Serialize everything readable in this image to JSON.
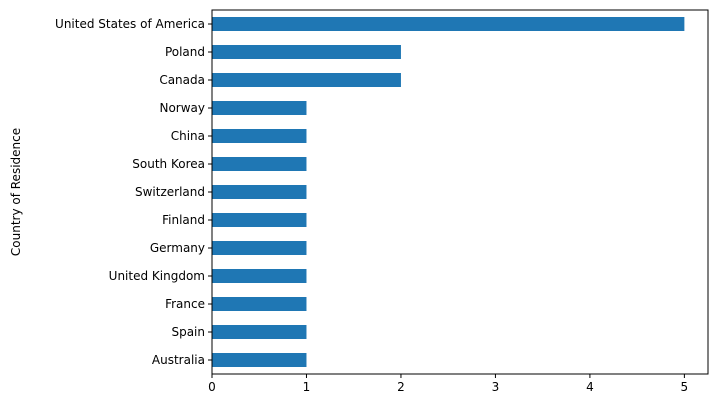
{
  "chart_data": {
    "type": "bar",
    "orientation": "horizontal",
    "categories": [
      "United States of America",
      "Poland",
      "Canada",
      "Norway",
      "China",
      "South Korea",
      "Switzerland",
      "Finland",
      "Germany",
      "United Kingdom",
      "France",
      "Spain",
      "Australia"
    ],
    "values": [
      5,
      2,
      2,
      1,
      1,
      1,
      1,
      1,
      1,
      1,
      1,
      1,
      1
    ],
    "title": "",
    "xlabel": "",
    "ylabel": "Country of Residence",
    "xlim": [
      0,
      5.25
    ],
    "xticks": [
      0,
      1,
      2,
      3,
      4,
      5
    ],
    "grid": false,
    "bar_color": "#1f77b4"
  }
}
